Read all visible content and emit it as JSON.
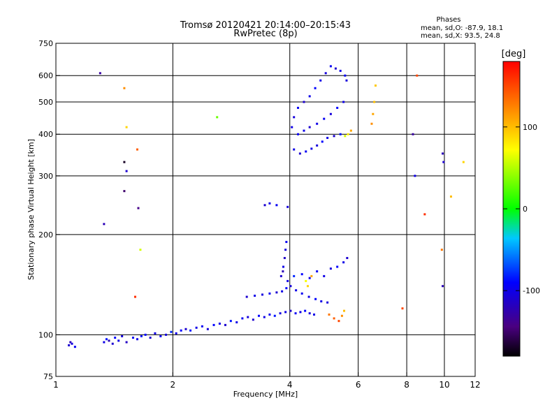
{
  "chart_data": {
    "type": "scatter",
    "title": "Tromsø 20120421 20:14:00–20:15:43",
    "subtitle": "RwPretec (8p)",
    "xlabel": "Frequency [MHz]",
    "ylabel": "Stationary phase Virtual Height [km]",
    "x_scale": "log",
    "y_scale": "log",
    "xlim": [
      1,
      12
    ],
    "ylim": [
      75,
      750
    ],
    "x_ticks": [
      1,
      2,
      4,
      6,
      8,
      10,
      12
    ],
    "y_ticks": [
      75,
      100,
      200,
      300,
      400,
      500,
      600,
      750
    ],
    "x_grid": [
      2,
      4,
      6,
      8,
      10
    ],
    "y_grid": [
      100,
      200,
      300,
      400,
      500,
      600
    ],
    "grid": true,
    "phases_box": {
      "title": "Phases",
      "line1": "mean, sd,O: -87.9, 18.1",
      "line2": "mean, sd,X: 93.5, 24.8"
    },
    "colorbar": {
      "label": "[deg]",
      "range": [
        -180,
        180
      ],
      "ticks": [
        100,
        0,
        -100
      ],
      "tick_labels": [
        "100",
        "0",
        "-100"
      ],
      "colormap": "rainbow (black-purple-blue-cyan-green-yellow-red)"
    },
    "points": [
      [
        1.08,
        93,
        -110
      ],
      [
        1.09,
        95,
        -120
      ],
      [
        1.1,
        94,
        -105
      ],
      [
        1.12,
        92,
        -95
      ],
      [
        1.33,
        95,
        -100
      ],
      [
        1.35,
        97,
        -85
      ],
      [
        1.37,
        96,
        -120
      ],
      [
        1.4,
        94,
        -110
      ],
      [
        1.42,
        98,
        -90
      ],
      [
        1.45,
        96,
        -100
      ],
      [
        1.48,
        99,
        -105
      ],
      [
        1.52,
        95,
        -115
      ],
      [
        1.58,
        98,
        -95
      ],
      [
        1.62,
        97,
        -100
      ],
      [
        1.66,
        99,
        -85
      ],
      [
        1.7,
        100,
        -90
      ],
      [
        1.75,
        98,
        -110
      ],
      [
        1.8,
        101,
        -100
      ],
      [
        1.86,
        99,
        -95
      ],
      [
        1.92,
        100,
        -105
      ],
      [
        1.98,
        102,
        -80
      ],
      [
        2.04,
        101,
        -100
      ],
      [
        2.1,
        103,
        -90
      ],
      [
        2.16,
        104,
        -110
      ],
      [
        2.22,
        103,
        -85
      ],
      [
        2.3,
        105,
        -100
      ],
      [
        2.38,
        106,
        -95
      ],
      [
        2.46,
        104,
        -105
      ],
      [
        2.55,
        107,
        -90
      ],
      [
        2.64,
        108,
        -100
      ],
      [
        2.73,
        107,
        -110
      ],
      [
        2.82,
        110,
        -85
      ],
      [
        2.92,
        109,
        -100
      ],
      [
        3.02,
        112,
        -95
      ],
      [
        3.12,
        113,
        -105
      ],
      [
        3.22,
        111,
        -110
      ],
      [
        3.33,
        114,
        -90
      ],
      [
        3.44,
        113,
        -100
      ],
      [
        3.55,
        115,
        -95
      ],
      [
        3.66,
        114,
        -85
      ],
      [
        3.78,
        116,
        -105
      ],
      [
        3.9,
        117,
        -100
      ],
      [
        4.02,
        118,
        -110
      ],
      [
        4.14,
        116,
        -95
      ],
      [
        4.26,
        117,
        -100
      ],
      [
        4.38,
        118,
        -90
      ],
      [
        4.5,
        116,
        -105
      ],
      [
        4.62,
        115,
        -100
      ],
      [
        3.1,
        130,
        -110
      ],
      [
        3.25,
        131,
        -100
      ],
      [
        3.4,
        132,
        -105
      ],
      [
        3.55,
        133,
        -95
      ],
      [
        3.7,
        134,
        -110
      ],
      [
        3.82,
        135,
        -100
      ],
      [
        3.92,
        138,
        -90
      ],
      [
        4.02,
        140,
        -105
      ],
      [
        4.15,
        136,
        -100
      ],
      [
        4.3,
        133,
        -95
      ],
      [
        4.48,
        130,
        -100
      ],
      [
        4.66,
        128,
        -90
      ],
      [
        4.82,
        126,
        -100
      ],
      [
        5.0,
        125,
        -105
      ],
      [
        3.8,
        150,
        -110
      ],
      [
        3.85,
        160,
        -100
      ],
      [
        3.88,
        170,
        -115
      ],
      [
        3.9,
        180,
        -105
      ],
      [
        3.92,
        190,
        -95
      ],
      [
        3.84,
        155,
        -120
      ],
      [
        3.95,
        145,
        -100
      ],
      [
        4.1,
        150,
        -80
      ],
      [
        4.3,
        152,
        -90
      ],
      [
        4.5,
        148,
        -100
      ],
      [
        4.7,
        155,
        -95
      ],
      [
        4.9,
        150,
        -100
      ],
      [
        5.1,
        158,
        -105
      ],
      [
        5.3,
        160,
        -90
      ],
      [
        5.5,
        165,
        -100
      ],
      [
        5.62,
        170,
        -110
      ],
      [
        4.4,
        145,
        70
      ],
      [
        4.45,
        140,
        90
      ],
      [
        4.55,
        150,
        110
      ],
      [
        5.05,
        115,
        130
      ],
      [
        5.2,
        112,
        140
      ],
      [
        5.35,
        110,
        150
      ],
      [
        5.45,
        114,
        120
      ],
      [
        5.52,
        118,
        100
      ],
      [
        4.05,
        420,
        -100
      ],
      [
        4.1,
        450,
        -105
      ],
      [
        4.2,
        480,
        -95
      ],
      [
        4.35,
        500,
        -110
      ],
      [
        4.5,
        520,
        -100
      ],
      [
        4.65,
        550,
        -90
      ],
      [
        4.8,
        580,
        -100
      ],
      [
        4.95,
        610,
        -105
      ],
      [
        5.1,
        640,
        -95
      ],
      [
        5.25,
        630,
        -110
      ],
      [
        5.4,
        620,
        -100
      ],
      [
        5.55,
        600,
        -95
      ],
      [
        5.6,
        580,
        -105
      ],
      [
        4.1,
        360,
        -100
      ],
      [
        4.25,
        350,
        -110
      ],
      [
        4.4,
        355,
        -95
      ],
      [
        4.55,
        362,
        -100
      ],
      [
        4.7,
        370,
        -105
      ],
      [
        4.85,
        380,
        -90
      ],
      [
        5.0,
        390,
        -100
      ],
      [
        5.2,
        395,
        -110
      ],
      [
        5.4,
        400,
        -85
      ],
      [
        4.2,
        400,
        -95
      ],
      [
        4.35,
        410,
        -100
      ],
      [
        4.5,
        420,
        -110
      ],
      [
        4.7,
        430,
        -100
      ],
      [
        4.9,
        445,
        -95
      ],
      [
        5.1,
        460,
        -105
      ],
      [
        5.3,
        480,
        -90
      ],
      [
        5.5,
        500,
        -100
      ],
      [
        5.55,
        395,
        60
      ],
      [
        5.65,
        400,
        80
      ],
      [
        5.75,
        410,
        110
      ],
      [
        6.5,
        430,
        120
      ],
      [
        6.55,
        460,
        110
      ],
      [
        6.6,
        500,
        100
      ],
      [
        6.65,
        560,
        95
      ],
      [
        3.45,
        245,
        -110
      ],
      [
        3.55,
        248,
        -100
      ],
      [
        3.7,
        245,
        -95
      ],
      [
        3.95,
        242,
        -105
      ],
      [
        1.3,
        610,
        -130
      ],
      [
        1.33,
        215,
        -120
      ],
      [
        1.5,
        330,
        -170
      ],
      [
        1.52,
        310,
        -110
      ],
      [
        1.5,
        550,
        120
      ],
      [
        1.52,
        420,
        90
      ],
      [
        1.5,
        270,
        -150
      ],
      [
        1.62,
        360,
        140
      ],
      [
        1.63,
        240,
        -140
      ],
      [
        1.65,
        180,
        60
      ],
      [
        1.6,
        130,
        160
      ],
      [
        8.5,
        600,
        150
      ],
      [
        8.3,
        400,
        -130
      ],
      [
        8.4,
        300,
        -100
      ],
      [
        9.9,
        350,
        -120
      ],
      [
        9.95,
        330,
        -110
      ],
      [
        9.85,
        180,
        130
      ],
      [
        9.9,
        140,
        -120
      ],
      [
        8.9,
        230,
        160
      ],
      [
        10.4,
        260,
        100
      ],
      [
        11.2,
        330,
        90
      ],
      [
        7.8,
        120,
        150
      ],
      [
        2.6,
        450,
        30
      ]
    ]
  }
}
